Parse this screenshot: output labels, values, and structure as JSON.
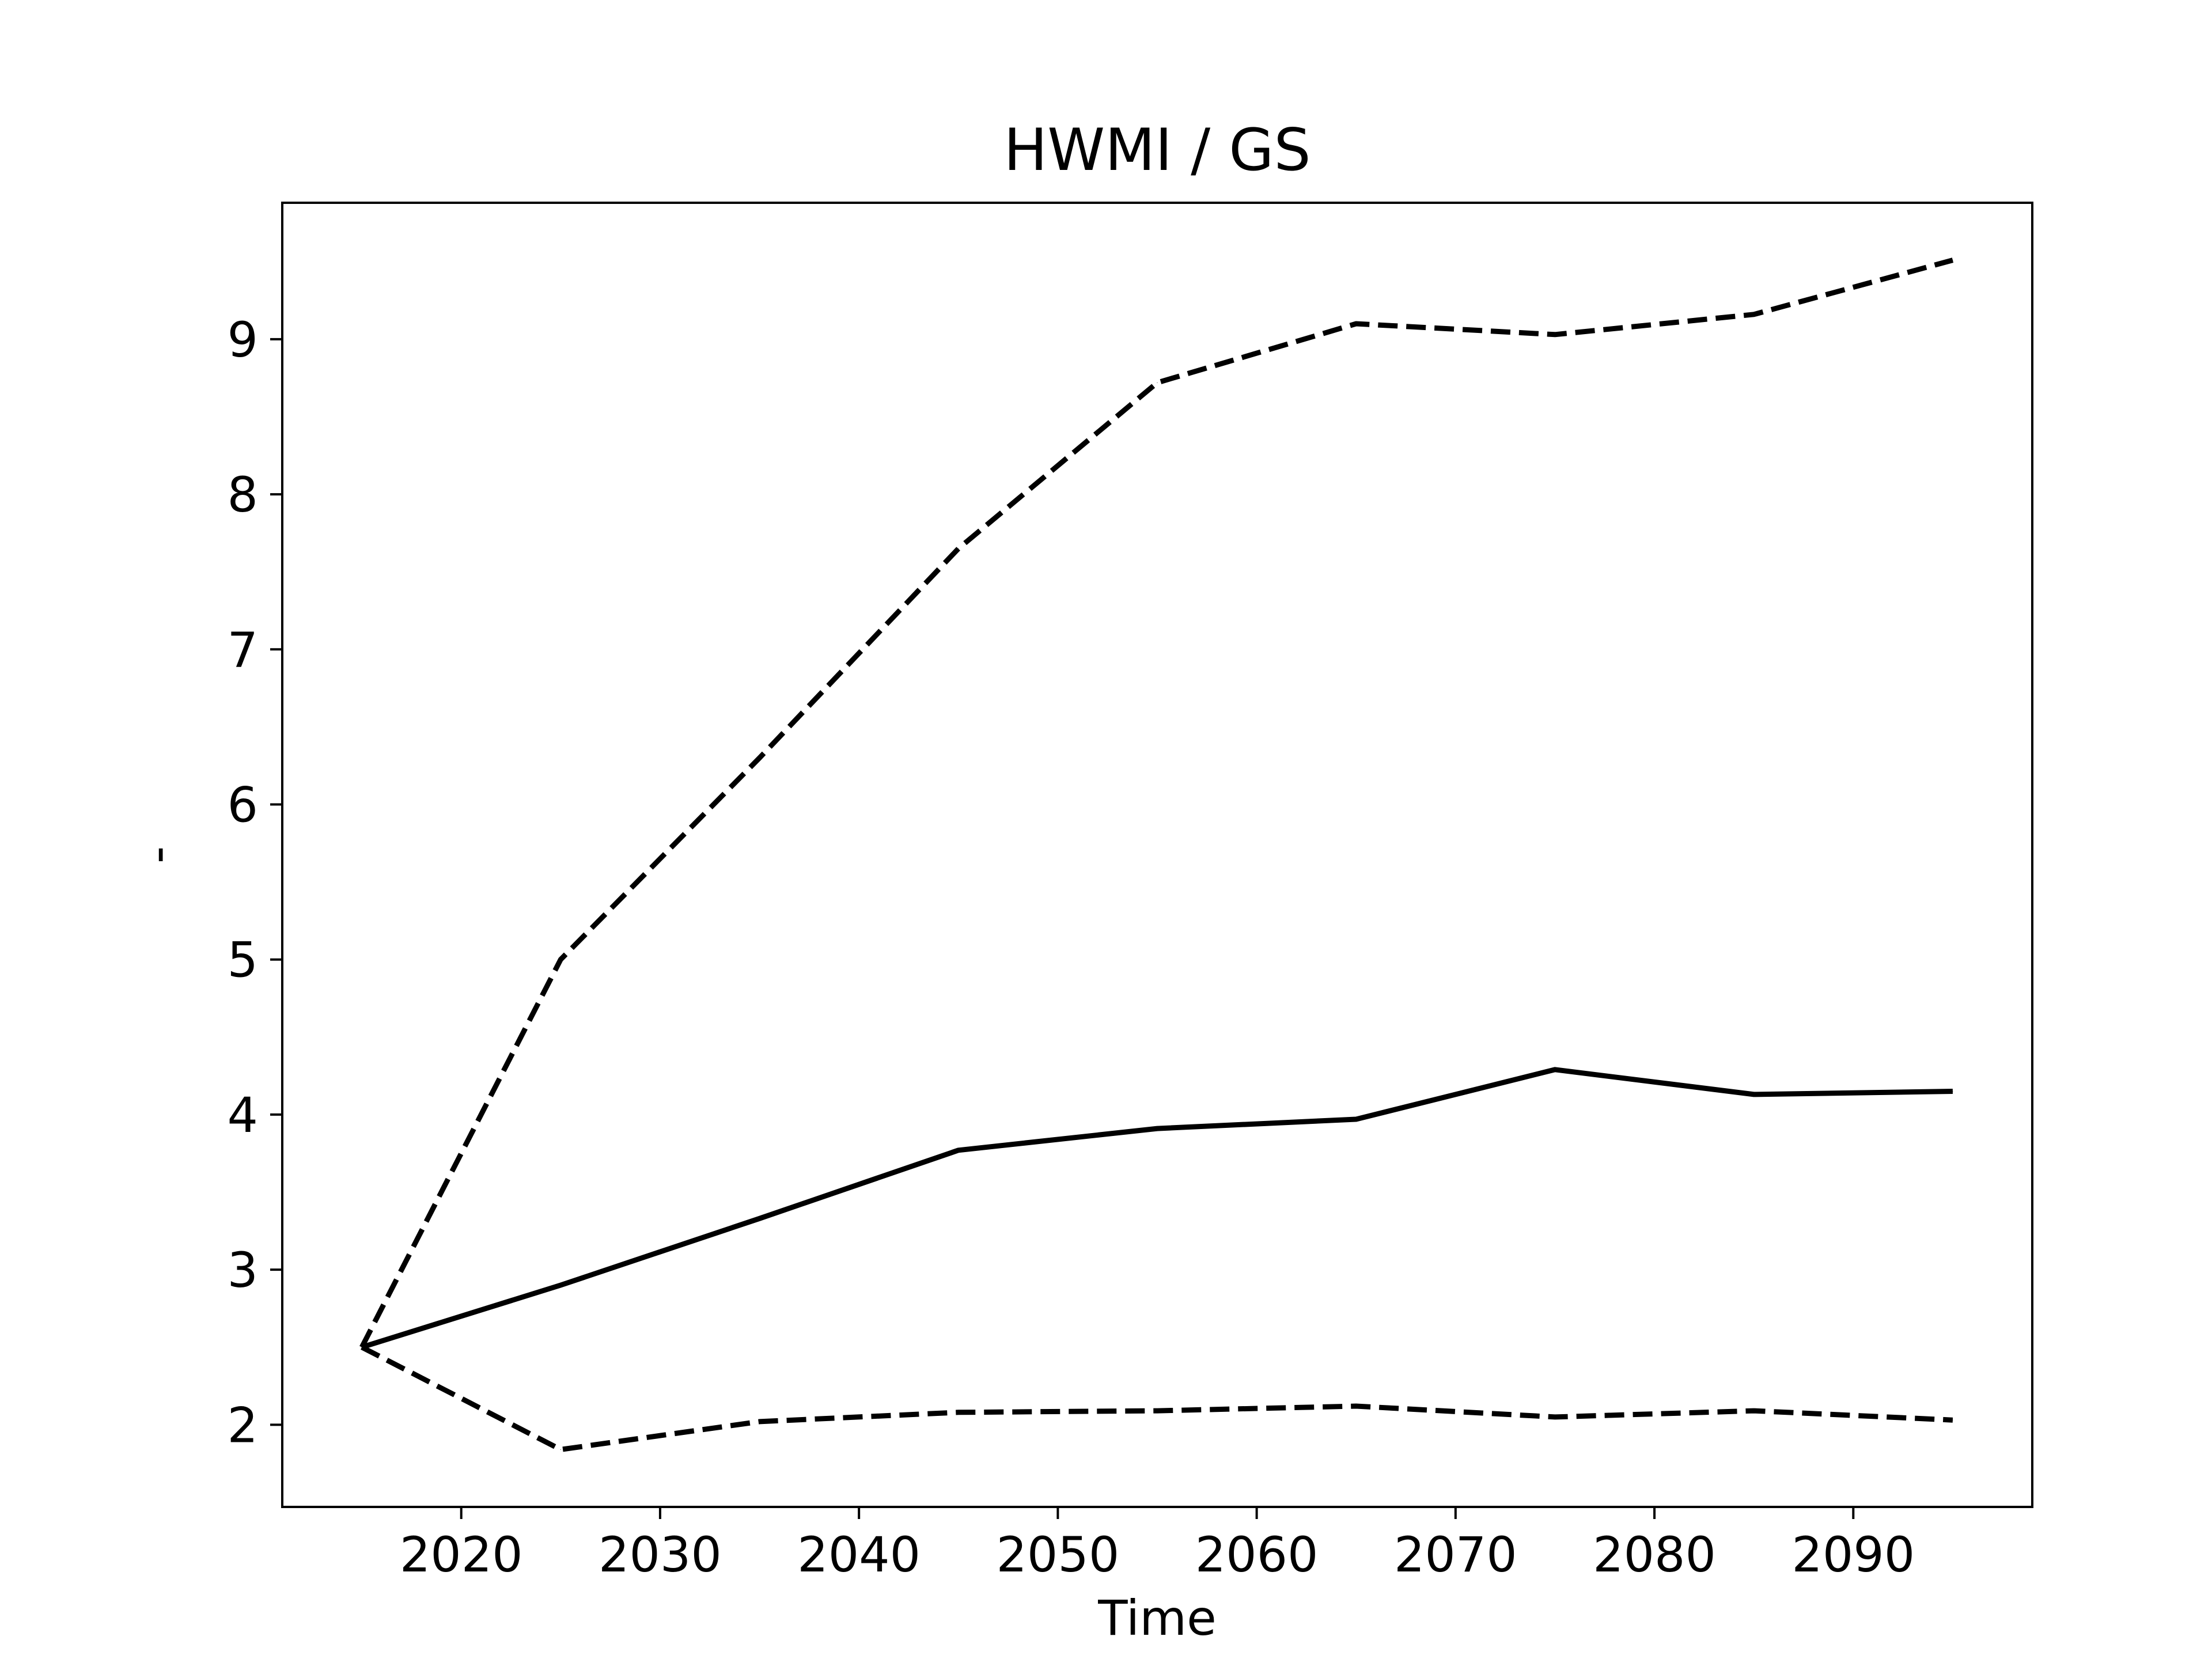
{
  "chart_data": {
    "type": "line",
    "title": "HWMI / GS",
    "xlabel": "Time",
    "ylabel": "-",
    "xlim": [
      2011,
      2099
    ],
    "ylim": [
      1.47,
      9.88
    ],
    "xticks": [
      2020,
      2030,
      2040,
      2050,
      2060,
      2070,
      2080,
      2090
    ],
    "yticks": [
      2,
      3,
      4,
      5,
      6,
      7,
      8,
      9
    ],
    "grid": false,
    "legend": "none",
    "x": [
      2015,
      2025,
      2035,
      2045,
      2055,
      2065,
      2075,
      2085,
      2095
    ],
    "series": [
      {
        "style": "solid",
        "color": "#000000",
        "values": [
          2.5,
          2.9,
          3.33,
          3.77,
          3.91,
          3.97,
          4.29,
          4.13,
          4.15
        ]
      },
      {
        "style": "dashed",
        "color": "#000000",
        "values": [
          2.5,
          5.0,
          6.3,
          7.65,
          8.72,
          9.1,
          9.03,
          9.16,
          9.51
        ]
      },
      {
        "style": "dashed",
        "color": "#000000",
        "values": [
          2.5,
          1.84,
          2.02,
          2.08,
          2.09,
          2.12,
          2.05,
          2.09,
          2.03
        ]
      }
    ]
  }
}
